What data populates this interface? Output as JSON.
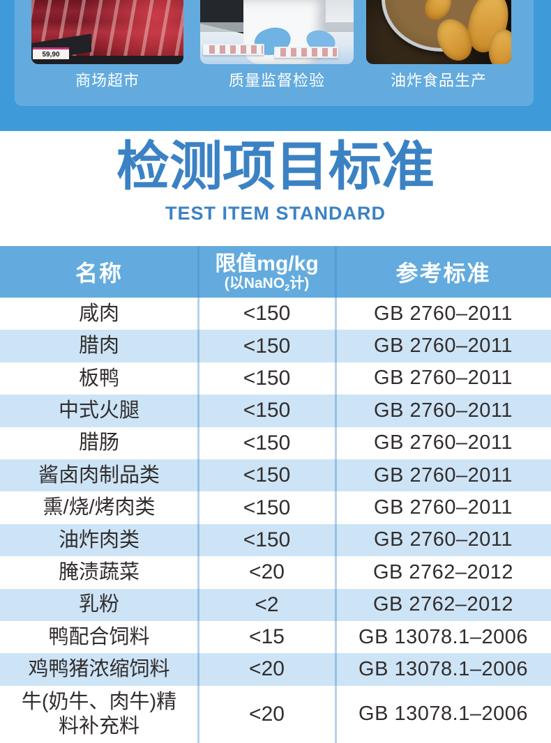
{
  "colors": {
    "page_blue": "#3f9ada",
    "panel_blue": "#63abde",
    "header_blue": "#63abde",
    "row_alt_blue": "#cde4f6",
    "accent_blue": "#3b82c4",
    "body_text": "#322d2d"
  },
  "hero": {
    "photos": [
      {
        "caption": "商场超市",
        "price_tag": "59,90"
      },
      {
        "caption": "质量监督检验"
      },
      {
        "caption": "油炸食品生产"
      }
    ]
  },
  "title_section": {
    "title": "检测项目标准",
    "subtitle": "TEST ITEM STANDARD"
  },
  "table": {
    "header": {
      "name": "名称",
      "limit_line1": "限值mg/kg",
      "limit_line2_pre": "(以NaNO",
      "limit_line2_sub": "2",
      "limit_line2_post": "计)",
      "standard": "参考标准"
    },
    "rows": [
      {
        "name": "咸肉",
        "limit": "<150",
        "standard": "GB 2760–2011"
      },
      {
        "name": "腊肉",
        "limit": "<150",
        "standard": "GB 2760–2011"
      },
      {
        "name": "板鸭",
        "limit": "<150",
        "standard": "GB 2760–2011"
      },
      {
        "name": "中式火腿",
        "limit": "<150",
        "standard": "GB 2760–2011"
      },
      {
        "name": "腊肠",
        "limit": "<150",
        "standard": "GB 2760–2011"
      },
      {
        "name": "酱卤肉制品类",
        "limit": "<150",
        "standard": "GB 2760–2011"
      },
      {
        "name": "熏/烧/烤肉类",
        "limit": "<150",
        "standard": "GB 2760–2011"
      },
      {
        "name": "油炸肉类",
        "limit": "<150",
        "standard": "GB 2760–2011"
      },
      {
        "name": "腌渍蔬菜",
        "limit": "<20",
        "standard": "GB 2762–2012"
      },
      {
        "name": "乳粉",
        "limit": "<2",
        "standard": "GB 2762–2012"
      },
      {
        "name": "鸭配合饲料",
        "limit": "<15",
        "standard": "GB 13078.1–2006"
      },
      {
        "name": "鸡鸭猪浓缩饲料",
        "limit": "<20",
        "standard": "GB 13078.1–2006"
      },
      {
        "name": "牛(奶牛、肉牛)精\n料补充料",
        "limit": "<20",
        "standard": "GB 13078.1–2006"
      }
    ]
  }
}
